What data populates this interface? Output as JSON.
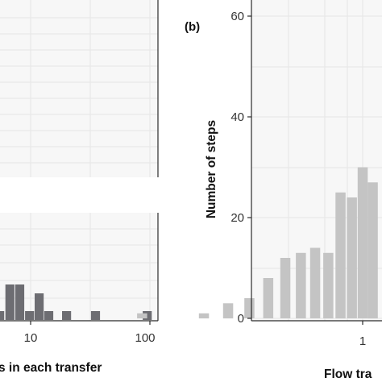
{
  "colors": {
    "bars_a": "#6d6d72",
    "bars_b": "#c4c4c4",
    "panel_bg": "#f7f7f7",
    "grid_major": "#e3e3e3",
    "frame": "#2b2b2b"
  },
  "chart_data": [
    {
      "type": "bar",
      "panel": "a",
      "xlabel": "s in each transfer",
      "ylabel": "",
      "x_scale": "log",
      "x_ticks": [
        "10",
        "100"
      ],
      "grid": true,
      "bins": [
        {
          "x": 4.5,
          "count": 1
        },
        {
          "x": 5.5,
          "count": 1
        },
        {
          "x": 6.7,
          "count": 4
        },
        {
          "x": 8.1,
          "count": 4
        },
        {
          "x": 9.8,
          "count": 1
        },
        {
          "x": 11.8,
          "count": 3
        },
        {
          "x": 14.2,
          "count": 1
        },
        {
          "x": 20.0,
          "count": 1
        },
        {
          "x": 35.0,
          "count": 1
        },
        {
          "x": 95.0,
          "count": 1
        }
      ]
    },
    {
      "type": "bar",
      "panel": "b",
      "label": "(b)",
      "xlabel": "Flow tra",
      "ylabel": "Number of steps",
      "x_scale": "log",
      "x_ticks": [
        "1"
      ],
      "y_ticks": [
        "0",
        "20",
        "40",
        "60"
      ],
      "ylim": [
        0,
        60
      ],
      "grid": true,
      "bins": [
        {
          "x": 0.28,
          "count": 1
        },
        {
          "x": 0.34,
          "count": 0
        },
        {
          "x": 0.4,
          "count": 1
        },
        {
          "x": 0.46,
          "count": 3
        },
        {
          "x": 0.52,
          "count": 4
        },
        {
          "x": 0.58,
          "count": 8
        },
        {
          "x": 0.64,
          "count": 12
        },
        {
          "x": 0.7,
          "count": 13
        },
        {
          "x": 0.76,
          "count": 14
        },
        {
          "x": 0.82,
          "count": 13
        },
        {
          "x": 0.88,
          "count": 25
        },
        {
          "x": 0.94,
          "count": 24
        },
        {
          "x": 1.0,
          "count": 30
        },
        {
          "x": 1.06,
          "count": 27
        }
      ]
    }
  ]
}
